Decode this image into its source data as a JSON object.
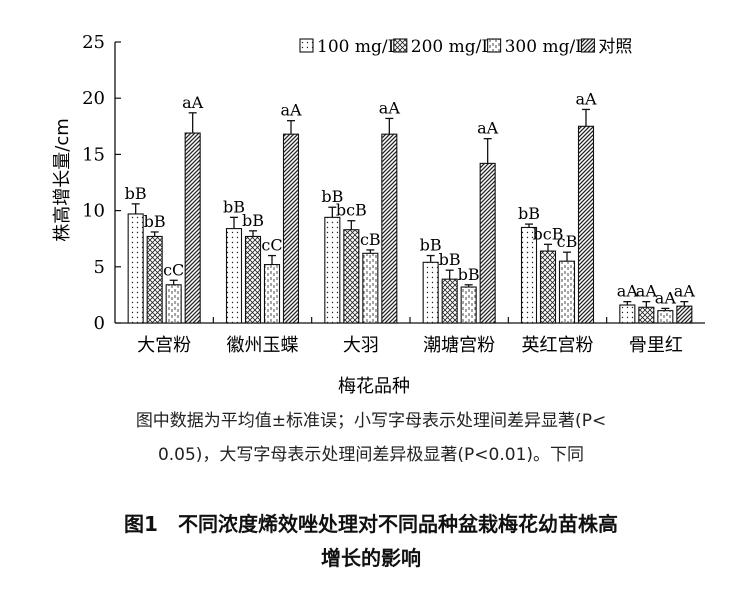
{
  "chart_data": {
    "type": "bar",
    "title": "",
    "xlabel": "梅花品种",
    "ylabel": "株高增长量/cm",
    "ylim": [
      0,
      25
    ],
    "yticks": [
      0,
      5,
      10,
      15,
      20,
      25
    ],
    "grid": false,
    "legend_position": "top-right",
    "categories": [
      "大宫粉",
      "徽州玉蝶",
      "大羽",
      "潮塘宫粉",
      "英红宫粉",
      "骨里红"
    ],
    "series": [
      {
        "name": "100 mg/L",
        "pattern": "dots",
        "values": [
          9.7,
          8.4,
          9.4,
          5.4,
          8.5,
          1.6
        ],
        "errors": [
          0.9,
          1.0,
          0.9,
          0.6,
          0.3,
          0.3
        ],
        "labels": [
          "bB",
          "bB",
          "bB",
          "bB",
          "bB",
          "aA"
        ]
      },
      {
        "name": "200 mg/L",
        "pattern": "crosshatch",
        "values": [
          7.7,
          7.7,
          8.3,
          3.9,
          6.4,
          1.4
        ],
        "errors": [
          0.4,
          0.5,
          0.8,
          0.8,
          0.6,
          0.5
        ],
        "labels": [
          "bB",
          "bB",
          "bcB",
          "bB",
          "bcB",
          "aA"
        ]
      },
      {
        "name": "300 mg/L",
        "pattern": "dashes",
        "values": [
          3.4,
          5.2,
          6.2,
          3.2,
          5.5,
          1.1
        ],
        "errors": [
          0.4,
          0.8,
          0.3,
          0.2,
          0.8,
          0.2
        ],
        "labels": [
          "cC",
          "cC",
          "cB",
          "bB",
          "cB",
          "aA"
        ]
      },
      {
        "name": "对照",
        "pattern": "diagonal",
        "values": [
          16.9,
          16.8,
          16.8,
          14.2,
          17.5,
          1.5
        ],
        "errors": [
          1.8,
          1.2,
          1.4,
          2.2,
          1.5,
          0.4
        ],
        "labels": [
          "aA",
          "aA",
          "aA",
          "aA",
          "aA",
          "aA"
        ]
      }
    ]
  },
  "note": {
    "line1": "图中数据为平均值±标准误；小写字母表示处理间差异显著(P<",
    "line2": "0.05)，大写字母表示处理间差异极显著(P<0.01)。下同"
  },
  "caption": {
    "line1": "图1　不同浓度烯效唑处理对不同品种盆栽梅花幼苗株高",
    "line2": "增长的影响"
  }
}
